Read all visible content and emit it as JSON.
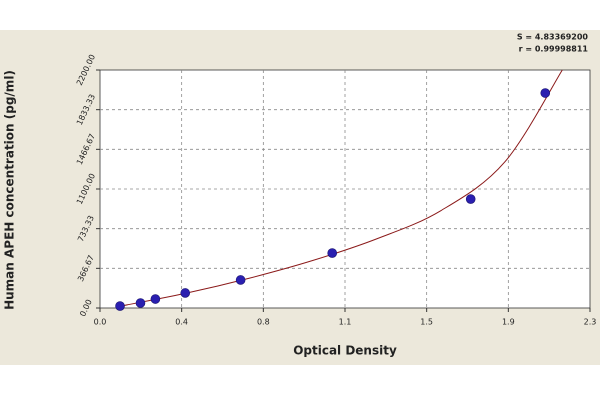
{
  "chart_data": {
    "type": "scatter",
    "x_label": "Optical Density",
    "y_label": "Human APEH concentration (pg/ml)",
    "annotations": [
      "S = 4.83369200",
      "r = 0.99998811"
    ],
    "series": [
      {
        "color": "#2a1fb0",
        "x": [
          0.094,
          0.19,
          0.26,
          0.4,
          0.66,
          1.09,
          1.74,
          2.09
        ],
        "values": [
          18,
          46,
          83,
          139,
          259,
          508,
          1007,
          1987
        ]
      }
    ],
    "fit": {
      "color": "#8b1a1a",
      "x": [
        0.09,
        0.4,
        0.7,
        1.0,
        1.3,
        1.6,
        1.9,
        2.17
      ],
      "values": [
        15,
        135,
        275,
        440,
        640,
        900,
        1350,
        2200
      ]
    },
    "xlim": [
      0,
      2.3
    ],
    "xticks": [
      {
        "value": 0,
        "label": "0.0"
      },
      {
        "value": 0.38333,
        "label": "0.4"
      },
      {
        "value": 0.76667,
        "label": "0.8"
      },
      {
        "value": 1.15,
        "label": "1.1"
      },
      {
        "value": 1.53333,
        "label": "1.5"
      },
      {
        "value": 1.91667,
        "label": "1.9"
      },
      {
        "value": 2.3,
        "label": "2.3"
      }
    ],
    "ylim": [
      0,
      2200
    ],
    "yticks": [
      {
        "value": 0,
        "label": "0.00"
      },
      {
        "value": 366.67,
        "label": "366.67"
      },
      {
        "value": 733.33,
        "label": "733.33"
      },
      {
        "value": 1100,
        "label": "1100.00"
      },
      {
        "value": 1466.67,
        "label": "1466.67"
      },
      {
        "value": 1833.33,
        "label": "1833.33"
      },
      {
        "value": 2200,
        "label": "2200.00"
      }
    ],
    "grid": true
  }
}
